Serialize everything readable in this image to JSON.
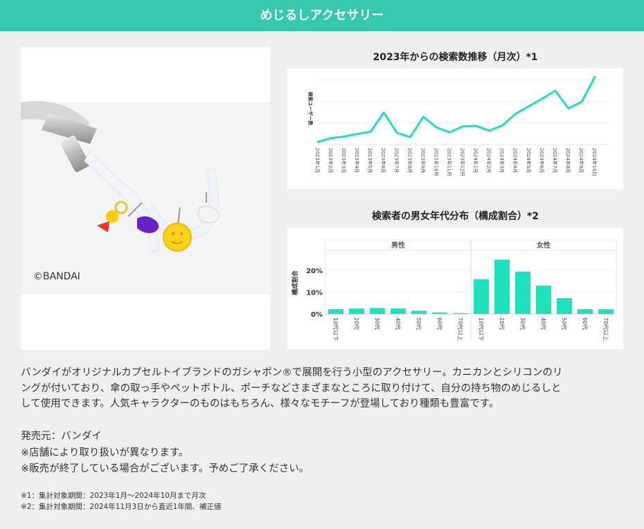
{
  "header": {
    "title": "めじるしアクセサリー"
  },
  "photo": {
    "watermark": "©BANDAI"
  },
  "chart_data": [
    {
      "type": "line",
      "title": "2023年からの検索数推移（月次）*1",
      "ylabel": "検索ユーザー数",
      "categories": [
        "2023年1月",
        "2023年2月",
        "2023年3月",
        "2023年4月",
        "2023年5月",
        "2023年6月",
        "2023年7月",
        "2023年8月",
        "2023年9月",
        "2023年10月",
        "2023年11月",
        "2023年12月",
        "2024年1月",
        "2024年2月",
        "2024年3月",
        "2024年4月",
        "2024年5月",
        "2024年6月",
        "2024年7月",
        "2024年8月",
        "2024年9月",
        "2024年10月"
      ],
      "values": [
        5,
        12,
        15,
        20,
        24,
        60,
        22,
        14,
        52,
        32,
        23,
        34,
        35,
        26,
        36,
        58,
        72,
        86,
        101,
        68,
        80,
        127
      ],
      "ylim": [
        0,
        135
      ],
      "color": "#1ee0bd",
      "grid": true
    },
    {
      "type": "bar",
      "title": "検索者の男女年代分布（構成割合）*2",
      "ylabel": "構成割合",
      "groups": [
        "男性",
        "女性"
      ],
      "categories": [
        "10代以下",
        "20代",
        "30代",
        "40代",
        "50代",
        "60代",
        "70代以上"
      ],
      "series": [
        {
          "name": "男性",
          "values": [
            2.2,
            2.5,
            2.7,
            2.5,
            1.5,
            0.7,
            0.4
          ]
        },
        {
          "name": "女性",
          "values": [
            16.0,
            25.0,
            19.5,
            13.0,
            7.3,
            2.2,
            2.2
          ]
        }
      ],
      "yticks": [
        "0%",
        "10%",
        "20%"
      ],
      "ylim": [
        0,
        28
      ],
      "color": "#1ee0bd"
    }
  ],
  "description": [
    "バンダイがオリジナルカプセルトイブランドのガシャポン®で展開を行う小型のアクセサリー。カニカンとシリコンのリ",
    "ングが付いており、傘の取っ手やペットボトル、ポーチなどさまざまなところに取り付けて、自分の持ち物のめじるしと",
    "して使用できます。人気キャラクターのものはもちろん、様々なモチーフが登場しており種類も豊富です。"
  ],
  "info": [
    "発売元：バンダイ",
    "※店舗により取り扱いが異なります。",
    "※販売が終了している場合がございます。予めご了承ください。"
  ],
  "notes": [
    "※1：集計対象期間：2023年1月〜2024年10月まで月次",
    "※2：集計対象期間：2024年11月3日から直近1年間、補正値"
  ]
}
